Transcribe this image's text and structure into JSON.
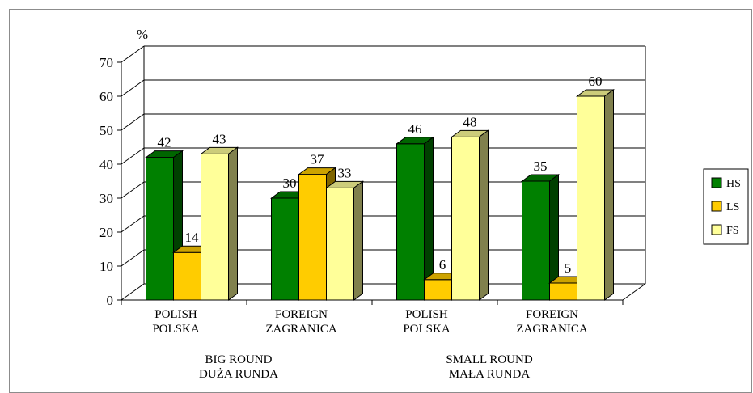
{
  "chart_data": {
    "type": "bar",
    "ylabel": "%",
    "ylim": [
      0,
      70
    ],
    "yticks": [
      0,
      10,
      20,
      30,
      40,
      50,
      60,
      70
    ],
    "grid": true,
    "legend_position": "right",
    "categories": [
      [
        "POLISH",
        "POLSKA"
      ],
      [
        "FOREIGN",
        "ZAGRANICA"
      ],
      [
        "POLISH",
        "POLSKA"
      ],
      [
        "FOREIGN",
        "ZAGRANICA"
      ]
    ],
    "groups": [
      [
        "BIG ROUND",
        "DUŻA RUNDA"
      ],
      [
        "SMALL ROUND",
        "MAŁA RUNDA"
      ]
    ],
    "series": [
      {
        "name": "HS",
        "color": "#008000",
        "values": [
          42,
          30,
          46,
          35
        ]
      },
      {
        "name": "LS",
        "color": "#ffcc00",
        "values": [
          14,
          37,
          6,
          5
        ]
      },
      {
        "name": "FS",
        "color": "#ffff99",
        "values": [
          43,
          33,
          48,
          60
        ]
      }
    ]
  }
}
